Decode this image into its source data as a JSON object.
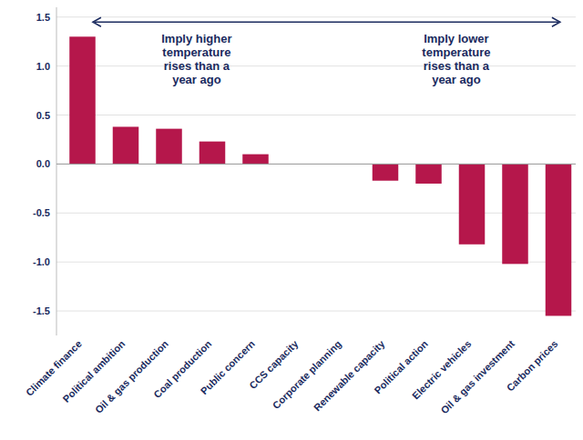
{
  "chart_data": {
    "type": "bar",
    "categories": [
      "Climate finance",
      "Political ambition",
      "Oil & gas production",
      "Coal production",
      "Public concern",
      "CCS capacity",
      "Corporate planning",
      "Renewable capacity",
      "Political action",
      "Electric vehicles",
      "Oil & gas investment",
      "Carbon prices"
    ],
    "values": [
      1.3,
      0.38,
      0.36,
      0.23,
      0.1,
      0.0,
      0.0,
      -0.17,
      -0.2,
      -0.82,
      -1.02,
      -1.55
    ],
    "color": "#B5174B",
    "ylim": [
      -1.75,
      1.6
    ],
    "yticks": [
      -1.5,
      {
        "value": -1.0,
        "label": "-1.0"
      },
      -0.5,
      {
        "value": 0.0,
        "label": "0.0"
      },
      0.5,
      {
        "value": 1.0,
        "label": "1.0"
      },
      1.5
    ],
    "grid": true,
    "annotations": [
      "Imply higher\ntemperature\nrises than a\nyear ago",
      "Imply lower\ntemperature\nrises than a\nyear ago"
    ]
  }
}
